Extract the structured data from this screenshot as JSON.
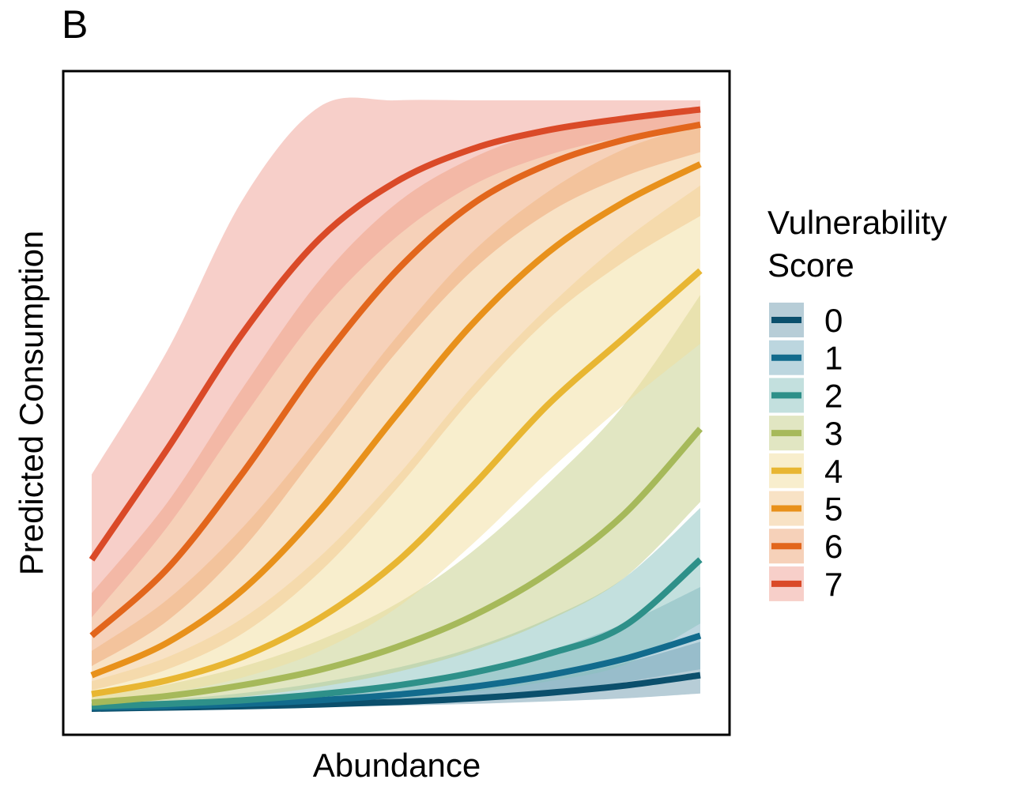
{
  "panel_label": "B",
  "chart_data": {
    "type": "line",
    "title": "",
    "xlabel": "Abundance",
    "ylabel": "Predicted Consumption",
    "x_ticks_shown": false,
    "y_ticks_shown": false,
    "grid": false,
    "xlim": [
      0,
      1
    ],
    "ylim": [
      0,
      1
    ],
    "legend": {
      "title_lines": [
        "Vulnerability",
        "Score"
      ],
      "placement": "right"
    },
    "x": [
      0,
      0.125,
      0.25,
      0.375,
      0.5,
      0.625,
      0.75,
      0.875,
      1
    ],
    "series": [
      {
        "name": "0",
        "color": "#0b4f6c",
        "band_color": "#6f9bb0",
        "values": [
          0.0,
          0.002,
          0.004,
          0.007,
          0.011,
          0.017,
          0.026,
          0.038,
          0.055
        ],
        "lower": [
          0.0,
          0.001,
          0.002,
          0.003,
          0.005,
          0.008,
          0.012,
          0.017,
          0.025
        ],
        "upper": [
          0.0,
          0.003,
          0.006,
          0.012,
          0.021,
          0.033,
          0.05,
          0.075,
          0.11
        ]
      },
      {
        "name": "1",
        "color": "#126b8d",
        "band_color": "#79aebf",
        "values": [
          0.002,
          0.004,
          0.008,
          0.014,
          0.023,
          0.036,
          0.055,
          0.082,
          0.12
        ],
        "lower": [
          0.0,
          0.002,
          0.004,
          0.007,
          0.012,
          0.019,
          0.029,
          0.044,
          0.065
        ],
        "upper": [
          0.004,
          0.008,
          0.015,
          0.026,
          0.041,
          0.063,
          0.095,
          0.14,
          0.2
        ]
      },
      {
        "name": "2",
        "color": "#2e9089",
        "band_color": "#87c1bd",
        "values": [
          0.004,
          0.008,
          0.014,
          0.024,
          0.038,
          0.059,
          0.09,
          0.136,
          0.245
        ],
        "lower": [
          0.001,
          0.003,
          0.006,
          0.01,
          0.017,
          0.028,
          0.045,
          0.072,
          0.14
        ],
        "upper": [
          0.008,
          0.015,
          0.026,
          0.043,
          0.067,
          0.1,
          0.148,
          0.215,
          0.33
        ]
      },
      {
        "name": "3",
        "color": "#a6b95a",
        "band_color": "#c3cd86",
        "values": [
          0.01,
          0.021,
          0.039,
          0.064,
          0.101,
          0.152,
          0.223,
          0.32,
          0.46
        ],
        "lower": [
          0.004,
          0.01,
          0.02,
          0.036,
          0.06,
          0.095,
          0.145,
          0.215,
          0.34
        ],
        "upper": [
          0.02,
          0.04,
          0.07,
          0.113,
          0.172,
          0.258,
          0.37,
          0.5,
          0.68
        ]
      },
      {
        "name": "4",
        "color": "#e8b632",
        "band_color": "#f1dd9c",
        "values": [
          0.024,
          0.047,
          0.086,
          0.149,
          0.24,
          0.365,
          0.5,
          0.61,
          0.72
        ],
        "lower": [
          0.012,
          0.026,
          0.052,
          0.095,
          0.165,
          0.27,
          0.39,
          0.5,
          0.6
        ],
        "upper": [
          0.045,
          0.085,
          0.15,
          0.25,
          0.38,
          0.53,
          0.66,
          0.77,
          0.86
        ]
      },
      {
        "name": "5",
        "color": "#e8911b",
        "band_color": "#f2c68b",
        "values": [
          0.055,
          0.109,
          0.197,
          0.326,
          0.482,
          0.632,
          0.75,
          0.833,
          0.895
        ],
        "lower": [
          0.03,
          0.065,
          0.125,
          0.225,
          0.36,
          0.51,
          0.64,
          0.735,
          0.81
        ],
        "upper": [
          0.095,
          0.18,
          0.3,
          0.45,
          0.61,
          0.75,
          0.85,
          0.92,
          0.96
        ]
      },
      {
        "name": "6",
        "color": "#e2661c",
        "band_color": "#eea474",
        "values": [
          0.12,
          0.231,
          0.39,
          0.568,
          0.719,
          0.829,
          0.895,
          0.935,
          0.96
        ],
        "lower": [
          0.07,
          0.145,
          0.265,
          0.425,
          0.585,
          0.72,
          0.815,
          0.875,
          0.915
        ],
        "upper": [
          0.19,
          0.34,
          0.53,
          0.705,
          0.83,
          0.905,
          0.95,
          0.975,
          0.99
        ]
      },
      {
        "name": "7",
        "color": "#da4a28",
        "band_color": "#ef9f93",
        "values": [
          0.245,
          0.428,
          0.62,
          0.773,
          0.866,
          0.92,
          0.951,
          0.97,
          0.985
        ],
        "lower": [
          0.15,
          0.3,
          0.48,
          0.65,
          0.775,
          0.86,
          0.91,
          0.94,
          0.96
        ],
        "upper": [
          0.385,
          0.59,
          0.84,
          0.99,
          1.0,
          1.0,
          1.0,
          1.0,
          1.0
        ]
      }
    ]
  }
}
